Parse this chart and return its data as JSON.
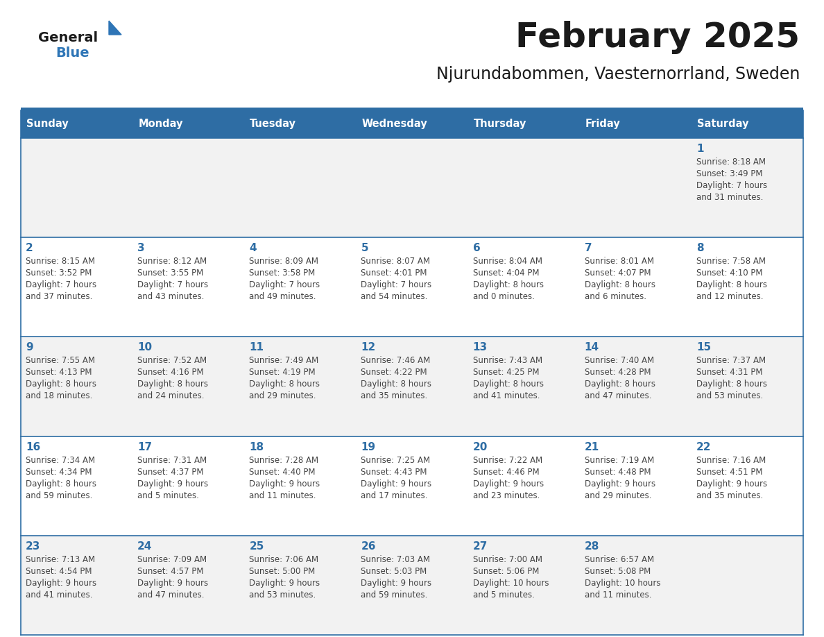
{
  "title": "February 2025",
  "subtitle": "Njurundabommen, Vaesternorrland, Sweden",
  "days_of_week": [
    "Sunday",
    "Monday",
    "Tuesday",
    "Wednesday",
    "Thursday",
    "Friday",
    "Saturday"
  ],
  "header_bg": "#2E6DA4",
  "header_text": "#FFFFFF",
  "cell_bg_odd": "#F2F2F2",
  "cell_bg_even": "#FFFFFF",
  "grid_line_color": "#2E6DA4",
  "day_number_color": "#2E6DA4",
  "text_color": "#444444",
  "logo_general_color": "#1a1a1a",
  "logo_blue_color": "#2E75B6",
  "calendar_data": [
    [
      null,
      null,
      null,
      null,
      null,
      null,
      1
    ],
    [
      2,
      3,
      4,
      5,
      6,
      7,
      8
    ],
    [
      9,
      10,
      11,
      12,
      13,
      14,
      15
    ],
    [
      16,
      17,
      18,
      19,
      20,
      21,
      22
    ],
    [
      23,
      24,
      25,
      26,
      27,
      28,
      null
    ]
  ],
  "cell_info": {
    "1": {
      "sunrise": "8:18 AM",
      "sunset": "3:49 PM",
      "daylight": "7 hours and 31 minutes."
    },
    "2": {
      "sunrise": "8:15 AM",
      "sunset": "3:52 PM",
      "daylight": "7 hours and 37 minutes."
    },
    "3": {
      "sunrise": "8:12 AM",
      "sunset": "3:55 PM",
      "daylight": "7 hours and 43 minutes."
    },
    "4": {
      "sunrise": "8:09 AM",
      "sunset": "3:58 PM",
      "daylight": "7 hours and 49 minutes."
    },
    "5": {
      "sunrise": "8:07 AM",
      "sunset": "4:01 PM",
      "daylight": "7 hours and 54 minutes."
    },
    "6": {
      "sunrise": "8:04 AM",
      "sunset": "4:04 PM",
      "daylight": "8 hours and 0 minutes."
    },
    "7": {
      "sunrise": "8:01 AM",
      "sunset": "4:07 PM",
      "daylight": "8 hours and 6 minutes."
    },
    "8": {
      "sunrise": "7:58 AM",
      "sunset": "4:10 PM",
      "daylight": "8 hours and 12 minutes."
    },
    "9": {
      "sunrise": "7:55 AM",
      "sunset": "4:13 PM",
      "daylight": "8 hours and 18 minutes."
    },
    "10": {
      "sunrise": "7:52 AM",
      "sunset": "4:16 PM",
      "daylight": "8 hours and 24 minutes."
    },
    "11": {
      "sunrise": "7:49 AM",
      "sunset": "4:19 PM",
      "daylight": "8 hours and 29 minutes."
    },
    "12": {
      "sunrise": "7:46 AM",
      "sunset": "4:22 PM",
      "daylight": "8 hours and 35 minutes."
    },
    "13": {
      "sunrise": "7:43 AM",
      "sunset": "4:25 PM",
      "daylight": "8 hours and 41 minutes."
    },
    "14": {
      "sunrise": "7:40 AM",
      "sunset": "4:28 PM",
      "daylight": "8 hours and 47 minutes."
    },
    "15": {
      "sunrise": "7:37 AM",
      "sunset": "4:31 PM",
      "daylight": "8 hours and 53 minutes."
    },
    "16": {
      "sunrise": "7:34 AM",
      "sunset": "4:34 PM",
      "daylight": "8 hours and 59 minutes."
    },
    "17": {
      "sunrise": "7:31 AM",
      "sunset": "4:37 PM",
      "daylight": "9 hours and 5 minutes."
    },
    "18": {
      "sunrise": "7:28 AM",
      "sunset": "4:40 PM",
      "daylight": "9 hours and 11 minutes."
    },
    "19": {
      "sunrise": "7:25 AM",
      "sunset": "4:43 PM",
      "daylight": "9 hours and 17 minutes."
    },
    "20": {
      "sunrise": "7:22 AM",
      "sunset": "4:46 PM",
      "daylight": "9 hours and 23 minutes."
    },
    "21": {
      "sunrise": "7:19 AM",
      "sunset": "4:48 PM",
      "daylight": "9 hours and 29 minutes."
    },
    "22": {
      "sunrise": "7:16 AM",
      "sunset": "4:51 PM",
      "daylight": "9 hours and 35 minutes."
    },
    "23": {
      "sunrise": "7:13 AM",
      "sunset": "4:54 PM",
      "daylight": "9 hours and 41 minutes."
    },
    "24": {
      "sunrise": "7:09 AM",
      "sunset": "4:57 PM",
      "daylight": "9 hours and 47 minutes."
    },
    "25": {
      "sunrise": "7:06 AM",
      "sunset": "5:00 PM",
      "daylight": "9 hours and 53 minutes."
    },
    "26": {
      "sunrise": "7:03 AM",
      "sunset": "5:03 PM",
      "daylight": "9 hours and 59 minutes."
    },
    "27": {
      "sunrise": "7:00 AM",
      "sunset": "5:06 PM",
      "daylight": "10 hours and 5 minutes."
    },
    "28": {
      "sunrise": "6:57 AM",
      "sunset": "5:08 PM",
      "daylight": "10 hours and 11 minutes."
    }
  }
}
